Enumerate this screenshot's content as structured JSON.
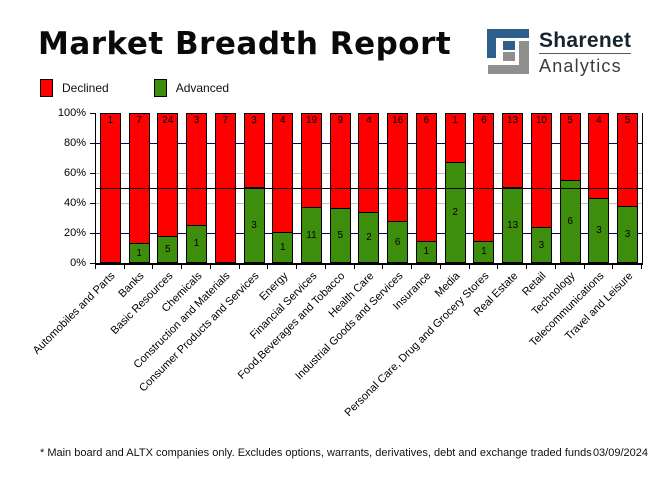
{
  "title": "Market Breadth Report",
  "logo": {
    "name": "Sharenet",
    "sub": "Analytics",
    "glyph_blue": "#2d5f8d",
    "glyph_gray": "#8f8f8f"
  },
  "legend": [
    {
      "label": "Declined",
      "color": "#ff0000"
    },
    {
      "label": "Advanced",
      "color": "#3e8e0d"
    }
  ],
  "chart_data": {
    "type": "bar",
    "stacked": true,
    "normalized": "percent",
    "title": "Market Breadth Report",
    "categories": [
      "Automobiles and Parts",
      "Banks",
      "Basic Resources",
      "Chemicals",
      "Construction and Materials",
      "Consumer Products and Services",
      "Energy",
      "Financial Services",
      "Food,Beverages and Tobacco",
      "Health Care",
      "Industrial Goods and Services",
      "Insurance",
      "Media",
      "Personal Care, Drug and Grocery Stores",
      "Real Estate",
      "Retail",
      "Technology",
      "Telecommunications",
      "Travel and Leisure"
    ],
    "series": [
      {
        "name": "Declined",
        "color": "#ff0000",
        "values": [
          1,
          7,
          24,
          3,
          7,
          3,
          4,
          19,
          9,
          4,
          16,
          6,
          1,
          6,
          13,
          10,
          5,
          4,
          5
        ]
      },
      {
        "name": "Advanced",
        "color": "#3e8e0d",
        "values": [
          0,
          1,
          5,
          1,
          0,
          3,
          1,
          11,
          5,
          2,
          6,
          1,
          2,
          1,
          13,
          3,
          6,
          3,
          3
        ]
      }
    ],
    "ylim": [
      0,
      100
    ],
    "y_ticks": [
      "100%",
      "80%",
      "60%",
      "40%",
      "20%",
      "0%"
    ],
    "gridlines": [
      {
        "pct": 80,
        "color": "#000080"
      },
      {
        "pct": 60,
        "color": "#c0c0c0"
      },
      {
        "pct": 40,
        "color": "#c0c0c0"
      },
      {
        "pct": 20,
        "color": "#000080"
      }
    ],
    "reference_line": {
      "pct": 50,
      "color": "#000000"
    },
    "legend_position": "top-left",
    "grid": true
  },
  "footer": {
    "note": "* Main board and ALTX companies only. Excludes options, warrants, derivatives, debt and exchange traded funds",
    "date": "03/09/2024"
  }
}
